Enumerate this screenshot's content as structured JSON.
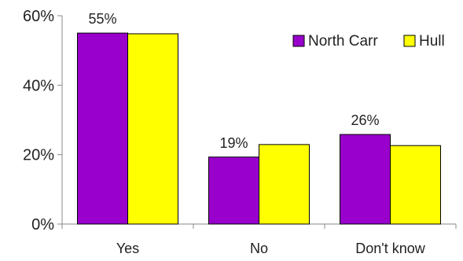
{
  "chart_data": {
    "type": "bar",
    "title": "",
    "xlabel": "",
    "ylabel": "",
    "categories": [
      "Yes",
      "No",
      "Don't know"
    ],
    "series": [
      {
        "name": "North Carr",
        "values": [
          55,
          19.3,
          25.8
        ],
        "color": "#9900cc"
      },
      {
        "name": "Hull",
        "values": [
          54.8,
          22.9,
          22.6
        ],
        "color": "#ffff00"
      }
    ],
    "data_labels": [
      {
        "text": "55%",
        "category_index": 0,
        "series_index": 0
      },
      {
        "text": "19%",
        "category_index": 1,
        "series_index": 0
      },
      {
        "text": "26%",
        "category_index": 2,
        "series_index": 0
      }
    ],
    "yticks": [
      "0%",
      "20%",
      "40%",
      "60%"
    ],
    "ylim": [
      0,
      60
    ],
    "grid": false,
    "legend_position": "top-right",
    "bar_outline": "#000000"
  }
}
